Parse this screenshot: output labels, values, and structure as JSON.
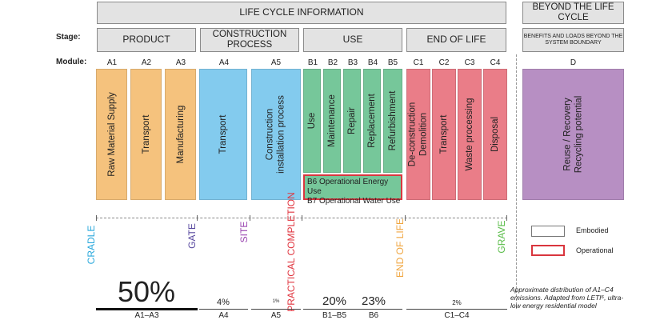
{
  "header": {
    "lifecycle": "LIFE CYCLE INFORMATION",
    "beyond": "BEYOND THE LIFE CYCLE"
  },
  "row_labels": {
    "stage": "Stage:",
    "module": "Module:"
  },
  "stages": {
    "product": "PRODUCT",
    "construction": "CONSTRUCTION PROCESS",
    "use": "USE",
    "eol": "END OF LIFE",
    "beyond": "BENEFITS AND LOADS BEYOND THE SYSTEM BOUNDARY"
  },
  "modules": {
    "A1": "A1",
    "A2": "A2",
    "A3": "A3",
    "A4": "A4",
    "A5": "A5",
    "B1": "B1",
    "B2": "B2",
    "B3": "B3",
    "B4": "B4",
    "B5": "B5",
    "C1": "C1",
    "C2": "C2",
    "C3": "C3",
    "C4": "C4",
    "D": "D"
  },
  "boxes": {
    "A1": "Raw Material Supply",
    "A2": "Transport",
    "A3": "Manufacturing",
    "A4": "Transport",
    "A5": "Construction installation process",
    "B1": "Use",
    "B2": "Maintenance",
    "B3": "Repair",
    "B4": "Replacement",
    "B5": "Refurbishment",
    "C1": "De-construction Demolition",
    "C2": "Transport",
    "C3": "Waste processing",
    "C4": "Disposal",
    "D": "Reuse / Recovery Recycling potential"
  },
  "operational": {
    "b6": "B6 Operational Energy Use",
    "b7": "B7 Operational Water Use"
  },
  "milestones": {
    "cradle": "CRADLE",
    "gate": "GATE",
    "site": "SITE",
    "practical": "PRACTICAL COMPLETION",
    "endoflife": "END OF LIFE",
    "grave": "GRAVE"
  },
  "legend": {
    "embodied": "Embodied",
    "operational": "Operational"
  },
  "percentages": {
    "a1a3": "50%",
    "a4": "4%",
    "a5": "1%",
    "b1b5": "20%",
    "b6": "23%",
    "c1c4": "2%"
  },
  "base_labels": {
    "a1a3": "A1–A3",
    "a4": "A4",
    "a5": "A5",
    "b1b5": "B1–B5",
    "b6": "B6",
    "c1c4": "C1–C4"
  },
  "footnote": "Approximate distribution of A1–C4 emissions. Adapted from LETI⁶, ultra-low energy residential model",
  "colors": {
    "product": "#f5c27d",
    "construction": "#83cbee",
    "use": "#76c79a",
    "eol": "#ea7d88",
    "beyond": "#b78fc3",
    "operational": "#d9363e"
  }
}
